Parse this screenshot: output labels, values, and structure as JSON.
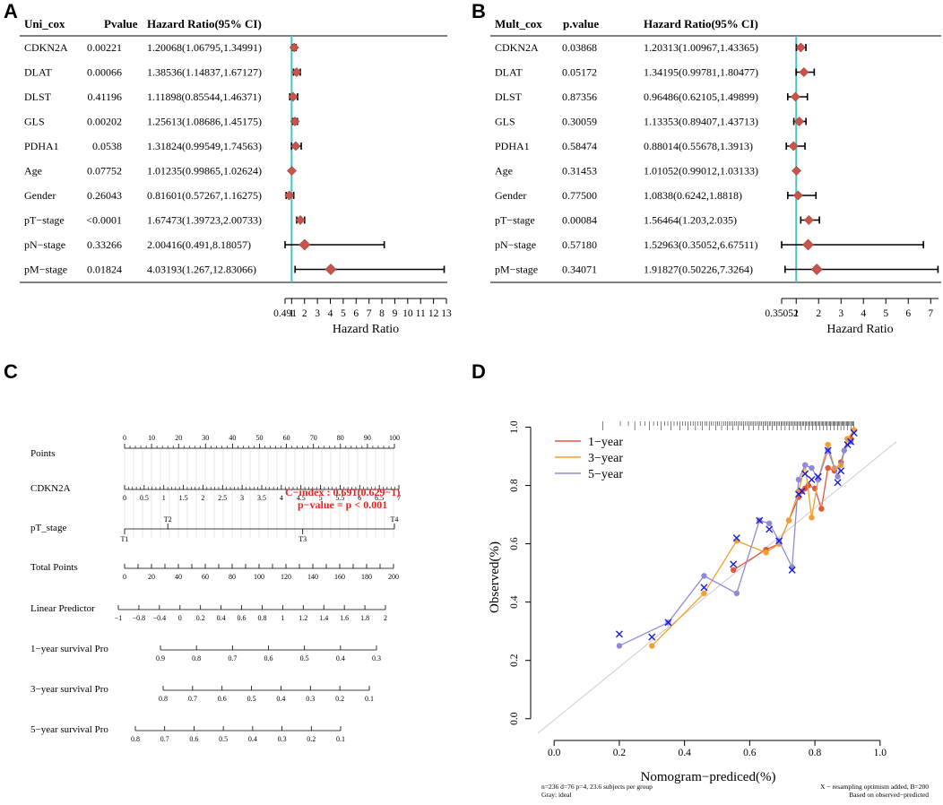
{
  "panels": [
    {
      "letter": "A"
    },
    {
      "letter": "B"
    },
    {
      "letter": "C"
    },
    {
      "letter": "D"
    }
  ],
  "chart_data": [
    {
      "panel": "A",
      "type": "forest",
      "headers": [
        "Uni_cox",
        "Pvalue",
        "Hazard Ratio(95% CI)"
      ],
      "rows": [
        {
          "name": "CDKN2A",
          "p": "0.00221",
          "hr_text": "1.20068(1.06795,1.34991)",
          "hr": 1.20068,
          "lo": 1.06795,
          "hi": 1.34991
        },
        {
          "name": "DLAT",
          "p": "0.00066",
          "hr_text": "1.38536(1.14837,1.67127)",
          "hr": 1.38536,
          "lo": 1.14837,
          "hi": 1.67127
        },
        {
          "name": "DLST",
          "p": "0.41196",
          "hr_text": "1.11898(0.85544,1.46371)",
          "hr": 1.11898,
          "lo": 0.85544,
          "hi": 1.46371
        },
        {
          "name": "GLS",
          "p": "0.00202",
          "hr_text": "1.25613(1.08686,1.45175)",
          "hr": 1.25613,
          "lo": 1.08686,
          "hi": 1.45175
        },
        {
          "name": "PDHA1",
          "p": "0.0538",
          "hr_text": "1.31824(0.99549,1.74563)",
          "hr": 1.31824,
          "lo": 0.99549,
          "hi": 1.74563
        },
        {
          "name": "Age",
          "p": "0.07752",
          "hr_text": "1.01235(0.99865,1.02624)",
          "hr": 1.01235,
          "lo": 0.99865,
          "hi": 1.02624
        },
        {
          "name": "Gender",
          "p": "0.26043",
          "hr_text": "0.81601(0.57267,1.16275)",
          "hr": 0.81601,
          "lo": 0.57267,
          "hi": 1.16275
        },
        {
          "name": "pT−stage",
          "p": "<0.0001",
          "hr_text": "1.67473(1.39723,2.00733)",
          "hr": 1.67473,
          "lo": 1.39723,
          "hi": 2.00733
        },
        {
          "name": "pN−stage",
          "p": "0.33266",
          "hr_text": "2.00416(0.491,8.18057)",
          "hr": 2.00416,
          "lo": 0.491,
          "hi": 8.18057
        },
        {
          "name": "pM−stage",
          "p": "0.01824",
          "hr_text": "4.03193(1.267,12.83066)",
          "hr": 4.03193,
          "lo": 1.267,
          "hi": 12.83066
        }
      ],
      "xlabel": "Hazard Ratio",
      "xticks": [
        0.491,
        1,
        2,
        3,
        4,
        5,
        6,
        7,
        8,
        9,
        10,
        11,
        12,
        13
      ],
      "xtick_labels": [
        "0.491",
        "1",
        "2",
        "3",
        "4",
        "5",
        "6",
        "7",
        "8",
        "9",
        "10",
        "11",
        "12",
        "13"
      ],
      "xlim": [
        0.491,
        13
      ],
      "ref": 1
    },
    {
      "panel": "B",
      "type": "forest",
      "headers": [
        "Mult_cox",
        "p.value",
        "Hazard Ratio(95% CI)"
      ],
      "rows": [
        {
          "name": "CDKN2A",
          "p": "0.03868",
          "hr_text": "1.20313(1.00967,1.43365)",
          "hr": 1.20313,
          "lo": 1.00967,
          "hi": 1.43365
        },
        {
          "name": "DLAT",
          "p": "0.05172",
          "hr_text": "1.34195(0.99781,1.80477)",
          "hr": 1.34195,
          "lo": 0.99781,
          "hi": 1.80477
        },
        {
          "name": "DLST",
          "p": "0.87356",
          "hr_text": "0.96486(0.62105,1.49899)",
          "hr": 0.96486,
          "lo": 0.62105,
          "hi": 1.49899
        },
        {
          "name": "GLS",
          "p": "0.30059",
          "hr_text": "1.13353(0.89407,1.43713)",
          "hr": 1.13353,
          "lo": 0.89407,
          "hi": 1.43713
        },
        {
          "name": "PDHA1",
          "p": "0.58474",
          "hr_text": "0.88014(0.55678,1.3913)",
          "hr": 0.88014,
          "lo": 0.55678,
          "hi": 1.3913
        },
        {
          "name": "Age",
          "p": "0.31453",
          "hr_text": "1.01052(0.99012,1.03133)",
          "hr": 1.01052,
          "lo": 0.99012,
          "hi": 1.03133
        },
        {
          "name": "Gender",
          "p": "0.77500",
          "hr_text": "1.0838(0.6242,1.8818)",
          "hr": 1.0838,
          "lo": 0.6242,
          "hi": 1.8818
        },
        {
          "name": "pT−stage",
          "p": "0.00084",
          "hr_text": "1.56464(1.203,2.035)",
          "hr": 1.56464,
          "lo": 1.203,
          "hi": 2.035
        },
        {
          "name": "pN−stage",
          "p": "0.57180",
          "hr_text": "1.52963(0.35052,6.67511)",
          "hr": 1.52963,
          "lo": 0.35052,
          "hi": 6.67511
        },
        {
          "name": "pM−stage",
          "p": "0.34071",
          "hr_text": "1.91827(0.50226,7.3264)",
          "hr": 1.91827,
          "lo": 0.50226,
          "hi": 7.3264
        }
      ],
      "xlabel": "Hazard Ratio",
      "xticks": [
        0.35052,
        1,
        2,
        3,
        4,
        5,
        6,
        7
      ],
      "xtick_labels": [
        "0.35052",
        "1",
        "2",
        "3",
        "4",
        "5",
        "6",
        "7"
      ],
      "xlim": [
        0.35052,
        7.35
      ],
      "ref": 1
    },
    {
      "panel": "C",
      "type": "nomogram",
      "annotation": {
        "cindex": "C−index : 0.691(0.629−1)",
        "pvalue": "p−value = p < 0.001",
        "color": "#e8231f"
      },
      "scales": [
        {
          "label": "Points",
          "ticks": [
            "0",
            "10",
            "20",
            "30",
            "40",
            "50",
            "60",
            "70",
            "80",
            "90",
            "100"
          ],
          "minor": true
        },
        {
          "label": "CDKN2A",
          "ticks": [
            "0",
            "0.5",
            "1",
            "1.5",
            "2",
            "2.5",
            "3",
            "3.5",
            "4",
            "4.5",
            "5",
            "5.5",
            "6",
            "6.5",
            "7"
          ],
          "minor": true
        },
        {
          "label": "pT_stage",
          "points": [
            "T1",
            "T2",
            "T3",
            "T4"
          ]
        },
        {
          "label": "Total Points",
          "ticks": [
            "0",
            "10",
            "20",
            "30",
            "40",
            "50",
            "60",
            "70",
            "80",
            "90",
            "100",
            "110",
            "120",
            "130",
            "140",
            "150",
            "160",
            "170",
            "180",
            "190",
            "200"
          ],
          "major_labels": [
            "0",
            "20",
            "40",
            "60",
            "80",
            "100",
            "120",
            "140",
            "160",
            "180",
            "200"
          ]
        },
        {
          "label": "Linear Predictor",
          "ticks": [
            "−1",
            "−0.8",
            "−0.4",
            "0",
            "0.2",
            "0.4",
            "0.6",
            "0.8",
            "1",
            "1.2",
            "1.4",
            "1.6",
            "1.8",
            "2"
          ]
        },
        {
          "label": "1−year survival Pro",
          "ticks": [
            "0.9",
            "0.8",
            "0.7",
            "0.6",
            "0.5",
            "0.4",
            "0.3"
          ]
        },
        {
          "label": "3−year survival Pro",
          "ticks": [
            "0.8",
            "0.7",
            "0.6",
            "0.5",
            "0.4",
            "0.3",
            "0.2",
            "0.1"
          ]
        },
        {
          "label": "5−year survival Pro",
          "ticks": [
            "0.8",
            "0.7",
            "0.6",
            "0.5",
            "0.4",
            "0.3",
            "0.2",
            "0.1"
          ]
        }
      ]
    },
    {
      "panel": "D",
      "type": "calibration",
      "xlabel": "Nomogram−prediced(%)",
      "ylabel": "Observed(%)",
      "xlim": [
        -0.05,
        1.05
      ],
      "ylim": [
        -0.05,
        1.02
      ],
      "xticks": [
        "0.0",
        "0.2",
        "0.4",
        "0.6",
        "0.8",
        "1.0"
      ],
      "yticks": [
        "0.0",
        "0.2",
        "0.4",
        "0.6",
        "0.8",
        "1.0"
      ],
      "legend": [
        {
          "label": "1−year",
          "color": "#e0593e"
        },
        {
          "label": "3−year",
          "color": "#f0a030"
        },
        {
          "label": "5−year",
          "color": "#8f8ad8"
        }
      ],
      "series": [
        {
          "name": "1−year",
          "color": "#e0593e",
          "x": [
            0.55,
            0.65,
            0.69,
            0.72,
            0.75,
            0.76,
            0.77,
            0.78,
            0.8,
            0.82,
            0.84,
            0.86,
            0.88,
            0.9,
            0.91,
            0.92
          ],
          "y": [
            0.51,
            0.58,
            0.6,
            0.68,
            0.76,
            0.78,
            0.79,
            0.8,
            0.79,
            0.72,
            0.86,
            0.85,
            0.88,
            0.96,
            0.96,
            0.99
          ]
        },
        {
          "name": "3−year",
          "color": "#f0a030",
          "x": [
            0.3,
            0.46,
            0.56,
            0.65,
            0.69,
            0.72,
            0.75,
            0.77,
            0.79,
            0.81,
            0.84,
            0.86,
            0.88,
            0.9,
            0.92
          ],
          "y": [
            0.25,
            0.43,
            0.61,
            0.57,
            0.6,
            0.68,
            0.78,
            0.87,
            0.69,
            0.82,
            0.94,
            0.86,
            0.87,
            0.96,
            0.99
          ]
        },
        {
          "name": "5−year",
          "color": "#8f8ad8",
          "x": [
            0.2,
            0.35,
            0.46,
            0.56,
            0.63,
            0.66,
            0.69,
            0.73,
            0.75,
            0.77,
            0.79,
            0.81,
            0.84,
            0.87,
            0.89,
            0.91
          ],
          "y": [
            0.25,
            0.33,
            0.49,
            0.43,
            0.68,
            0.67,
            0.61,
            0.52,
            0.82,
            0.87,
            0.86,
            0.82,
            0.92,
            0.83,
            0.92,
            0.95
          ]
        }
      ],
      "crosses": {
        "color": "#1c1ccf",
        "x": [
          0.2,
          0.3,
          0.35,
          0.46,
          0.55,
          0.56,
          0.63,
          0.66,
          0.69,
          0.73,
          0.75,
          0.76,
          0.77,
          0.79,
          0.81,
          0.84,
          0.87,
          0.88,
          0.9,
          0.91,
          0.92
        ],
        "y": [
          0.29,
          0.28,
          0.33,
          0.45,
          0.53,
          0.62,
          0.68,
          0.65,
          0.61,
          0.51,
          0.77,
          0.78,
          0.84,
          0.82,
          0.83,
          0.92,
          0.81,
          0.85,
          0.94,
          0.95,
          0.98
        ]
      },
      "footnote_left": [
        "n=236 d=76 p=4, 23.6 subjects per group",
        "Gray: ideal"
      ],
      "footnote_right": [
        "X − resampling optimism added, B=200",
        "Based on observed−predicted"
      ]
    }
  ]
}
